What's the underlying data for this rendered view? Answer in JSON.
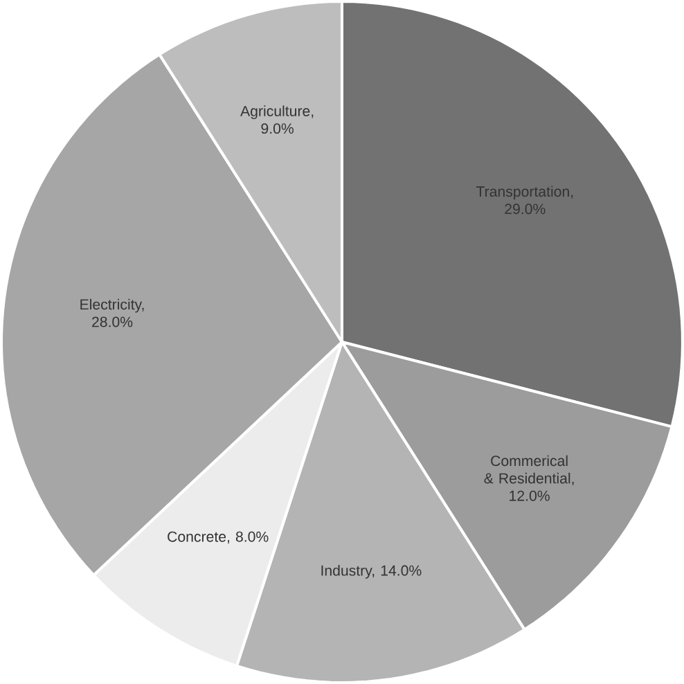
{
  "chart_data": {
    "type": "pie",
    "categories": [
      "Transportation, 29.0%",
      "Commerical & Residential, 12.0%",
      "Industry, 14.0%",
      "Concrete, 8.0%",
      "Electricity, 28.0%",
      "Agriculture, 9.0%"
    ],
    "values": [
      29,
      12,
      14,
      8,
      28,
      9
    ],
    "colors": [
      "#727272",
      "#9c9c9c",
      "#b4b4b4",
      "#ececec",
      "#a6a6a6",
      "#bdbdbd"
    ]
  }
}
